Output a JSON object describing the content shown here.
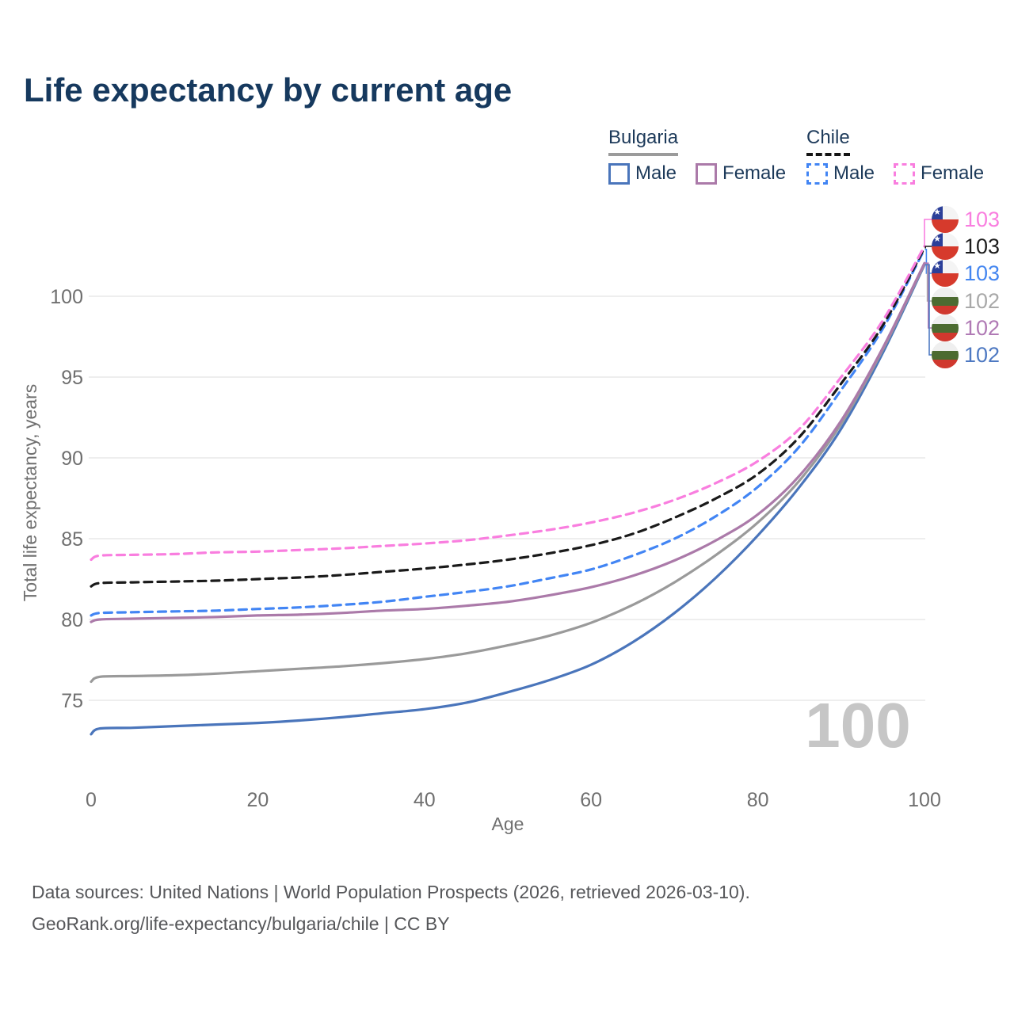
{
  "title": "Life expectancy by current age",
  "legend": {
    "groups": [
      {
        "name": "Bulgaria",
        "line_style": "solid",
        "underline_color": "#9b9b9b",
        "items": [
          {
            "label": "Male",
            "color": "#4a75bb",
            "dashed": false
          },
          {
            "label": "Female",
            "color": "#ab7aa9",
            "dashed": false
          }
        ]
      },
      {
        "name": "Chile",
        "line_style": "dashed",
        "underline_color": "#141414",
        "items": [
          {
            "label": "Male",
            "color": "#4285f4",
            "dashed": true
          },
          {
            "label": "Female",
            "color": "#f97edf",
            "dashed": true
          }
        ]
      }
    ]
  },
  "chart_data": {
    "type": "line",
    "title": "Life expectancy by current age",
    "xlabel": "Age",
    "ylabel": "Total life expectancy, years",
    "xlim": [
      0,
      100
    ],
    "ylim": [
      72,
      104
    ],
    "xticks": [
      0,
      20,
      40,
      60,
      80,
      100
    ],
    "yticks": [
      75,
      80,
      85,
      90,
      95,
      100
    ],
    "grid": "horizontal-only",
    "gridline_color": "#e9e9e9",
    "tick_color": "#6f6f6f",
    "watermark": "100",
    "watermark_color": "#c6c6c6",
    "x": [
      0,
      1,
      5,
      10,
      15,
      20,
      25,
      30,
      35,
      40,
      45,
      50,
      55,
      60,
      65,
      70,
      75,
      80,
      85,
      90,
      95,
      100
    ],
    "series": [
      {
        "id": "bulgaria-male",
        "name": "Bulgaria Male",
        "country": "Bulgaria",
        "sex": "male",
        "color": "#4a75bb",
        "dashed": false,
        "values": [
          72.9,
          73.25,
          73.3,
          73.4,
          73.5,
          73.6,
          73.75,
          73.95,
          74.2,
          74.45,
          74.85,
          75.5,
          76.25,
          77.2,
          78.6,
          80.4,
          82.6,
          85.2,
          88.2,
          91.8,
          96.5,
          101.95
        ]
      },
      {
        "id": "bulgaria-all",
        "name": "Bulgaria (both sexes)",
        "country": "Bulgaria",
        "sex": "both",
        "color": "#9a9a9a",
        "dashed": false,
        "values": [
          76.15,
          76.45,
          76.5,
          76.55,
          76.65,
          76.8,
          76.95,
          77.1,
          77.3,
          77.55,
          77.9,
          78.4,
          79.0,
          79.8,
          80.9,
          82.3,
          84.0,
          86.0,
          88.6,
          92.1,
          96.7,
          102.0
        ]
      },
      {
        "id": "bulgaria-female",
        "name": "Bulgaria Female",
        "country": "Bulgaria",
        "sex": "female",
        "color": "#ab7aa9",
        "dashed": false,
        "values": [
          79.85,
          80.0,
          80.05,
          80.1,
          80.15,
          80.25,
          80.3,
          80.4,
          80.55,
          80.65,
          80.85,
          81.1,
          81.5,
          82.0,
          82.7,
          83.65,
          84.9,
          86.5,
          88.9,
          92.3,
          96.8,
          102.05
        ]
      },
      {
        "id": "chile-male",
        "name": "Chile Male",
        "country": "Chile",
        "sex": "male",
        "color": "#4285f4",
        "dashed": true,
        "values": [
          80.25,
          80.4,
          80.45,
          80.5,
          80.55,
          80.65,
          80.75,
          80.9,
          81.1,
          81.4,
          81.7,
          82.05,
          82.55,
          83.1,
          83.95,
          85.0,
          86.4,
          88.2,
          90.7,
          94.2,
          98.0,
          102.9
        ]
      },
      {
        "id": "chile-all",
        "name": "Chile (both sexes)",
        "country": "Chile",
        "sex": "both",
        "color": "#1a1a1a",
        "dashed": true,
        "values": [
          82.05,
          82.25,
          82.3,
          82.35,
          82.4,
          82.5,
          82.6,
          82.75,
          82.95,
          83.15,
          83.4,
          83.7,
          84.1,
          84.6,
          85.3,
          86.3,
          87.5,
          89.0,
          91.3,
          94.6,
          98.2,
          103.0
        ]
      },
      {
        "id": "chile-female",
        "name": "Chile Female",
        "country": "Chile",
        "sex": "female",
        "color": "#f97edf",
        "dashed": true,
        "values": [
          83.7,
          83.95,
          84.0,
          84.05,
          84.15,
          84.2,
          84.3,
          84.4,
          84.55,
          84.7,
          84.9,
          85.2,
          85.55,
          86.0,
          86.6,
          87.4,
          88.45,
          89.8,
          91.8,
          95.0,
          98.5,
          103.1
        ]
      }
    ],
    "end_labels": [
      {
        "series": "chile-female",
        "value": "103",
        "color": "#f97edf",
        "flag": "chile"
      },
      {
        "series": "chile-all",
        "value": "103",
        "color": "#1c1c1c",
        "flag": "chile"
      },
      {
        "series": "chile-male",
        "value": "103",
        "color": "#4486f0",
        "flag": "chile"
      },
      {
        "series": "bulgaria-all",
        "value": "102",
        "color": "#a9a9a9",
        "flag": "bulgaria"
      },
      {
        "series": "bulgaria-female",
        "value": "102",
        "color": "#b07ab5",
        "flag": "bulgaria"
      },
      {
        "series": "bulgaria-male",
        "value": "102",
        "color": "#4e79c2",
        "flag": "bulgaria"
      }
    ]
  },
  "footer": {
    "line1": "Data sources: United Nations | World Population Prospects (2026, retrieved 2026-03-10).",
    "line2": "GeoRank.org/life-expectancy/bulgaria/chile | CC BY"
  }
}
